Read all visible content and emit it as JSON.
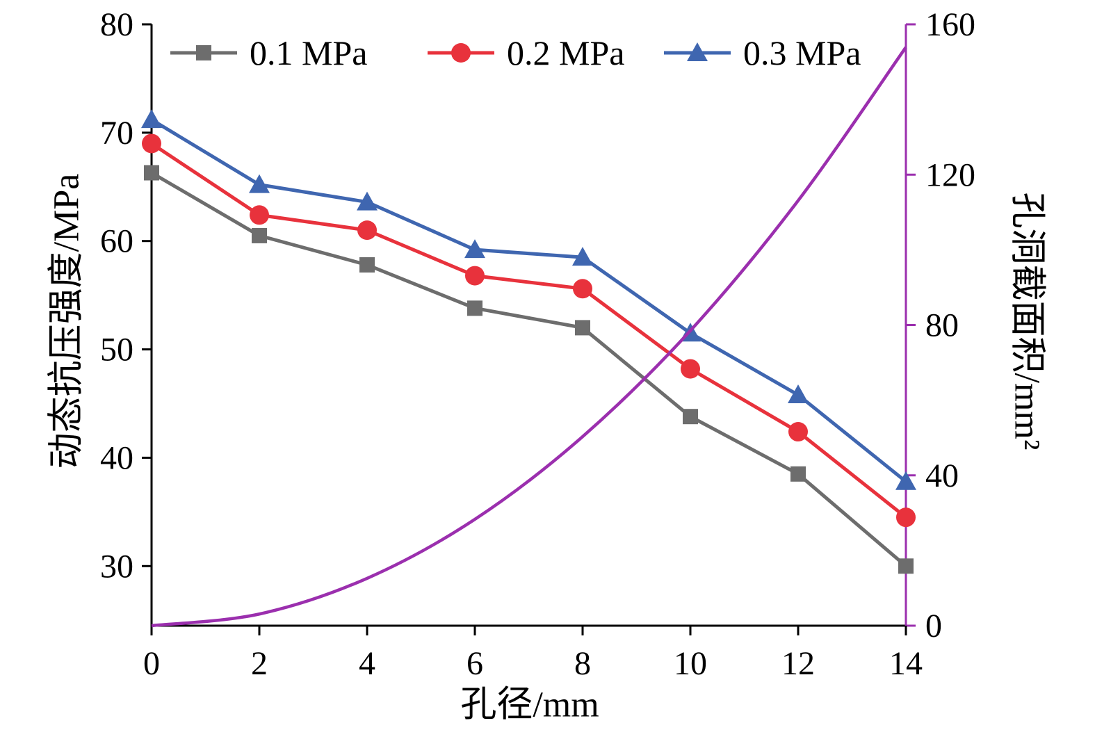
{
  "chart_data": {
    "type": "line",
    "x": [
      0,
      2,
      4,
      6,
      8,
      10,
      12,
      14
    ],
    "xlabel": "孔径/mm",
    "x_ticks": [
      0,
      2,
      4,
      6,
      8,
      10,
      12,
      14
    ],
    "left_axis": {
      "label": "动态抗压强度/MPa",
      "min": 24.5,
      "max": 80,
      "ticks": [
        30,
        40,
        50,
        60,
        70,
        80
      ],
      "color": "#000000"
    },
    "right_axis": {
      "label": "孔洞截面积/mm²",
      "min": 0,
      "max": 160,
      "ticks": [
        0,
        40,
        80,
        120,
        160
      ],
      "color": "#9b2fae"
    },
    "series": [
      {
        "name": "0.1 MPa",
        "axis": "left",
        "color": "#6d6d6d",
        "marker": "square",
        "in_legend": true,
        "values": [
          66.3,
          60.5,
          57.8,
          53.8,
          52.0,
          43.8,
          38.5,
          30.0
        ]
      },
      {
        "name": "0.2 MPa",
        "axis": "left",
        "color": "#e8323c",
        "marker": "circle",
        "in_legend": true,
        "values": [
          69.0,
          62.4,
          61.0,
          56.8,
          55.6,
          48.2,
          42.4,
          34.5
        ]
      },
      {
        "name": "0.3 MPa",
        "axis": "left",
        "color": "#3f66b0",
        "marker": "triangle",
        "in_legend": true,
        "values": [
          71.2,
          65.2,
          63.6,
          59.2,
          58.5,
          51.5,
          45.8,
          37.8
        ]
      },
      {
        "name": "孔洞截面积",
        "axis": "right",
        "color": "#9b2fae",
        "marker": "none",
        "smooth": true,
        "in_legend": false,
        "values": [
          0,
          3.1,
          12.6,
          28.3,
          50.3,
          78.5,
          113.1,
          153.9
        ]
      }
    ],
    "legend": {
      "position": "top-inside",
      "entries": [
        "0.1 MPa",
        "0.2 MPa",
        "0.3 MPa"
      ]
    },
    "grid": false
  }
}
